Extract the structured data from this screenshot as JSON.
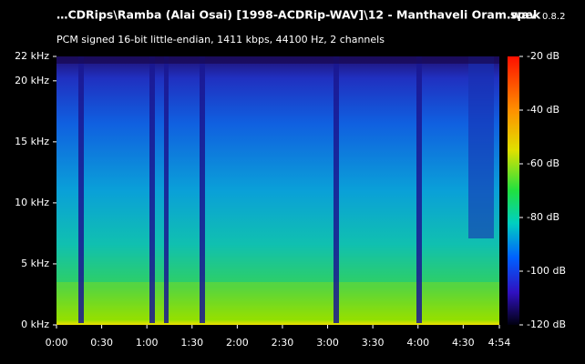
{
  "chart_data": {
    "type": "spectrogram",
    "title": "…CDRips\\Ramba (Alai Osai) [1998-ACDRip-WAV]\\12 - Manthaveli Oram.wav",
    "app_name": "spek",
    "app_version": "0.8.2",
    "subtitle": "PCM signed 16-bit little-endian, 1411 kbps, 44100 Hz, 2 channels",
    "xlim": [
      0,
      294
    ],
    "xticks": [
      {
        "value": 0,
        "label": "0:00"
      },
      {
        "value": 30,
        "label": "0:30"
      },
      {
        "value": 60,
        "label": "1:00"
      },
      {
        "value": 90,
        "label": "1:30"
      },
      {
        "value": 120,
        "label": "2:00"
      },
      {
        "value": 150,
        "label": "2:30"
      },
      {
        "value": 180,
        "label": "3:00"
      },
      {
        "value": 210,
        "label": "3:30"
      },
      {
        "value": 240,
        "label": "4:00"
      },
      {
        "value": 270,
        "label": "4:30"
      },
      {
        "value": 294,
        "label": "4:54"
      }
    ],
    "ylim": [
      0,
      22
    ],
    "yticks": [
      {
        "value": 0,
        "label": "0 kHz"
      },
      {
        "value": 5,
        "label": "5 kHz"
      },
      {
        "value": 10,
        "label": "10 kHz"
      },
      {
        "value": 15,
        "label": "15 kHz"
      },
      {
        "value": 20,
        "label": "20 kHz"
      },
      {
        "value": 22,
        "label": "22 kHz"
      }
    ],
    "zlim": [
      -120,
      -20
    ],
    "zticks": [
      {
        "value": -20,
        "label": "-20 dB"
      },
      {
        "value": -40,
        "label": "-40 dB"
      },
      {
        "value": -60,
        "label": "-60 dB"
      },
      {
        "value": -80,
        "label": "-80 dB"
      },
      {
        "value": -100,
        "label": "-100 dB"
      },
      {
        "value": -120,
        "label": "-120 dB"
      }
    ]
  }
}
